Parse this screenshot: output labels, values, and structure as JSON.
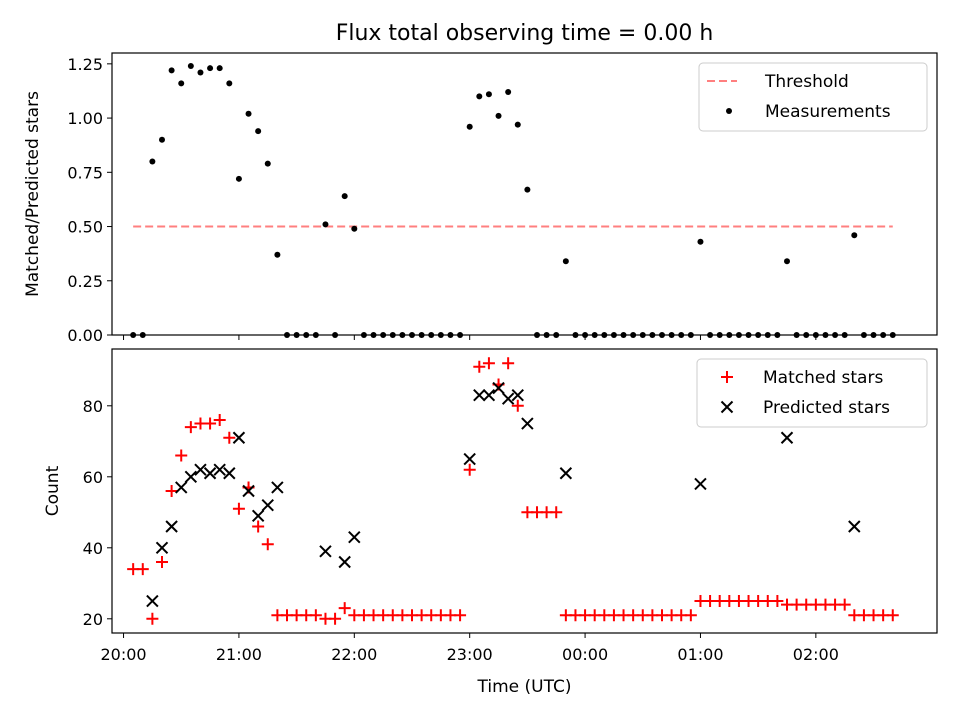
{
  "chart_data": [
    {
      "type": "scatter",
      "title": "Flux total observing time = 0.00 h",
      "xlabel": "",
      "ylabel": "Matched/Predicted stars",
      "xlim": [
        "19:54",
        "03:03"
      ],
      "ylim": [
        0,
        1.3
      ],
      "xticks": [
        "20:00",
        "21:00",
        "22:00",
        "23:00",
        "00:00",
        "01:00",
        "02:00"
      ],
      "yticks": [
        "0.00",
        "0.25",
        "0.50",
        "0.75",
        "1.00",
        "1.25"
      ],
      "legend": {
        "placement": "top-right",
        "entries": [
          "Threshold",
          "Measurements"
        ]
      },
      "threshold": {
        "name": "Threshold",
        "value": 0.5,
        "x_start": "20:05",
        "x_end": "02:40",
        "color": "#ff7f7f"
      },
      "series": [
        {
          "name": "Measurements",
          "color": "#000000",
          "points": [
            [
              "20:05",
              0
            ],
            [
              "20:10",
              0
            ],
            [
              "20:15",
              0.8
            ],
            [
              "20:20",
              0.9
            ],
            [
              "20:25",
              1.22
            ],
            [
              "20:30",
              1.16
            ],
            [
              "20:35",
              1.24
            ],
            [
              "20:40",
              1.21
            ],
            [
              "20:45",
              1.23
            ],
            [
              "20:50",
              1.23
            ],
            [
              "20:55",
              1.16
            ],
            [
              "21:00",
              0.72
            ],
            [
              "21:05",
              1.02
            ],
            [
              "21:10",
              0.94
            ],
            [
              "21:15",
              0.79
            ],
            [
              "21:20",
              0.37
            ],
            [
              "21:25",
              0
            ],
            [
              "21:30",
              0
            ],
            [
              "21:35",
              0
            ],
            [
              "21:40",
              0
            ],
            [
              "21:45",
              0.51
            ],
            [
              "21:50",
              0
            ],
            [
              "21:55",
              0.64
            ],
            [
              "22:00",
              0.49
            ],
            [
              "22:05",
              0
            ],
            [
              "22:10",
              0
            ],
            [
              "22:15",
              0
            ],
            [
              "22:20",
              0
            ],
            [
              "22:25",
              0
            ],
            [
              "22:30",
              0
            ],
            [
              "22:35",
              0
            ],
            [
              "22:40",
              0
            ],
            [
              "22:45",
              0
            ],
            [
              "22:50",
              0
            ],
            [
              "22:55",
              0
            ],
            [
              "23:00",
              0.96
            ],
            [
              "23:05",
              1.1
            ],
            [
              "23:10",
              1.11
            ],
            [
              "23:15",
              1.01
            ],
            [
              "23:20",
              1.12
            ],
            [
              "23:25",
              0.97
            ],
            [
              "23:30",
              0.67
            ],
            [
              "23:35",
              0
            ],
            [
              "23:40",
              0
            ],
            [
              "23:45",
              0
            ],
            [
              "23:50",
              0.34
            ],
            [
              "23:55",
              0
            ],
            [
              "00:00",
              0
            ],
            [
              "00:05",
              0
            ],
            [
              "00:10",
              0
            ],
            [
              "00:15",
              0
            ],
            [
              "00:20",
              0
            ],
            [
              "00:25",
              0
            ],
            [
              "00:30",
              0
            ],
            [
              "00:35",
              0
            ],
            [
              "00:40",
              0
            ],
            [
              "00:45",
              0
            ],
            [
              "00:50",
              0
            ],
            [
              "00:55",
              0
            ],
            [
              "01:00",
              0.43
            ],
            [
              "01:05",
              0
            ],
            [
              "01:10",
              0
            ],
            [
              "01:15",
              0
            ],
            [
              "01:20",
              0
            ],
            [
              "01:25",
              0
            ],
            [
              "01:30",
              0
            ],
            [
              "01:35",
              0
            ],
            [
              "01:40",
              0
            ],
            [
              "01:45",
              0.34
            ],
            [
              "01:50",
              0
            ],
            [
              "01:55",
              0
            ],
            [
              "02:00",
              0
            ],
            [
              "02:05",
              0
            ],
            [
              "02:10",
              0
            ],
            [
              "02:15",
              0
            ],
            [
              "02:20",
              0.46
            ],
            [
              "02:25",
              0
            ],
            [
              "02:30",
              0
            ],
            [
              "02:35",
              0
            ],
            [
              "02:40",
              0
            ]
          ]
        }
      ]
    },
    {
      "type": "scatter",
      "title": "",
      "xlabel": "Time (UTC)",
      "ylabel": "Count",
      "xlim": [
        "19:54",
        "03:03"
      ],
      "ylim": [
        16,
        96
      ],
      "xticks": [
        "20:00",
        "21:00",
        "22:00",
        "23:00",
        "00:00",
        "01:00",
        "02:00"
      ],
      "yticks": [
        "20",
        "40",
        "60",
        "80"
      ],
      "legend": {
        "placement": "top-right",
        "entries": [
          "Matched stars",
          "Predicted stars"
        ]
      },
      "series": [
        {
          "name": "Matched stars",
          "marker": "plus",
          "color": "#ff0000",
          "points": [
            [
              "20:05",
              34
            ],
            [
              "20:10",
              34
            ],
            [
              "20:15",
              20
            ],
            [
              "20:20",
              36
            ],
            [
              "20:25",
              56
            ],
            [
              "20:30",
              66
            ],
            [
              "20:35",
              74
            ],
            [
              "20:40",
              75
            ],
            [
              "20:45",
              75
            ],
            [
              "20:50",
              76
            ],
            [
              "20:55",
              71
            ],
            [
              "21:00",
              51
            ],
            [
              "21:05",
              57
            ],
            [
              "21:10",
              46
            ],
            [
              "21:15",
              41
            ],
            [
              "21:20",
              21
            ],
            [
              "21:25",
              21
            ],
            [
              "21:30",
              21
            ],
            [
              "21:35",
              21
            ],
            [
              "21:40",
              21
            ],
            [
              "21:45",
              20
            ],
            [
              "21:50",
              20
            ],
            [
              "21:55",
              23
            ],
            [
              "22:00",
              21
            ],
            [
              "22:05",
              21
            ],
            [
              "22:10",
              21
            ],
            [
              "22:15",
              21
            ],
            [
              "22:20",
              21
            ],
            [
              "22:25",
              21
            ],
            [
              "22:30",
              21
            ],
            [
              "22:35",
              21
            ],
            [
              "22:40",
              21
            ],
            [
              "22:45",
              21
            ],
            [
              "22:50",
              21
            ],
            [
              "22:55",
              21
            ],
            [
              "23:00",
              62
            ],
            [
              "23:05",
              91
            ],
            [
              "23:10",
              92
            ],
            [
              "23:15",
              86
            ],
            [
              "23:20",
              92
            ],
            [
              "23:25",
              80
            ],
            [
              "23:30",
              50
            ],
            [
              "23:35",
              50
            ],
            [
              "23:40",
              50
            ],
            [
              "23:45",
              50
            ],
            [
              "23:50",
              21
            ],
            [
              "23:55",
              21
            ],
            [
              "00:00",
              21
            ],
            [
              "00:05",
              21
            ],
            [
              "00:10",
              21
            ],
            [
              "00:15",
              21
            ],
            [
              "00:20",
              21
            ],
            [
              "00:25",
              21
            ],
            [
              "00:30",
              21
            ],
            [
              "00:35",
              21
            ],
            [
              "00:40",
              21
            ],
            [
              "00:45",
              21
            ],
            [
              "00:50",
              21
            ],
            [
              "00:55",
              21
            ],
            [
              "01:00",
              25
            ],
            [
              "01:05",
              25
            ],
            [
              "01:10",
              25
            ],
            [
              "01:15",
              25
            ],
            [
              "01:20",
              25
            ],
            [
              "01:25",
              25
            ],
            [
              "01:30",
              25
            ],
            [
              "01:35",
              25
            ],
            [
              "01:40",
              25
            ],
            [
              "01:45",
              24
            ],
            [
              "01:50",
              24
            ],
            [
              "01:55",
              24
            ],
            [
              "02:00",
              24
            ],
            [
              "02:05",
              24
            ],
            [
              "02:10",
              24
            ],
            [
              "02:15",
              24
            ],
            [
              "02:20",
              21
            ],
            [
              "02:25",
              21
            ],
            [
              "02:30",
              21
            ],
            [
              "02:35",
              21
            ],
            [
              "02:40",
              21
            ]
          ]
        },
        {
          "name": "Predicted stars",
          "marker": "x",
          "color": "#000000",
          "points": [
            [
              "20:15",
              25
            ],
            [
              "20:20",
              40
            ],
            [
              "20:25",
              46
            ],
            [
              "20:30",
              57
            ],
            [
              "20:35",
              60
            ],
            [
              "20:40",
              62
            ],
            [
              "20:45",
              61
            ],
            [
              "20:50",
              62
            ],
            [
              "20:55",
              61
            ],
            [
              "21:00",
              71
            ],
            [
              "21:05",
              56
            ],
            [
              "21:10",
              49
            ],
            [
              "21:15",
              52
            ],
            [
              "21:20",
              57
            ],
            [
              "21:45",
              39
            ],
            [
              "21:55",
              36
            ],
            [
              "22:00",
              43
            ],
            [
              "23:00",
              65
            ],
            [
              "23:05",
              83
            ],
            [
              "23:10",
              83
            ],
            [
              "23:15",
              85
            ],
            [
              "23:20",
              82
            ],
            [
              "23:25",
              83
            ],
            [
              "23:30",
              75
            ],
            [
              "23:50",
              61
            ],
            [
              "01:00",
              58
            ],
            [
              "01:45",
              71
            ],
            [
              "02:20",
              46
            ]
          ]
        }
      ]
    }
  ]
}
